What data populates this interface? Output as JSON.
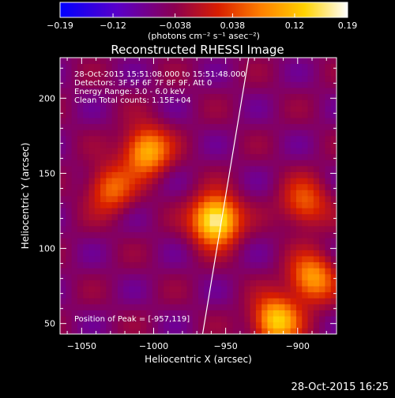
{
  "chart_data": {
    "type": "heatmap",
    "title": "Reconstructed RHESSI Image",
    "xlabel": "Heliocentric X (arcsec)",
    "ylabel": "Heliocentric Y (arcsec)",
    "xlim": [
      -1065,
      -873
    ],
    "ylim": [
      43,
      227
    ],
    "xticks": [
      -1050,
      -1000,
      -950,
      -900
    ],
    "yticks": [
      50,
      100,
      150,
      200
    ],
    "colorbar": {
      "range": [
        -0.19,
        0.19
      ],
      "ticks": [
        "-0.19",
        "-0.12",
        "-0.038",
        "0.038",
        "0.12",
        "0.19"
      ],
      "tick_values": [
        -0.19,
        -0.12,
        -0.038,
        0.038,
        0.12,
        0.19
      ],
      "unit_label": "(photons cm⁻² s⁻¹ asec⁻²)",
      "colors": [
        "#0000ff",
        "#5a00c8",
        "#8c0050",
        "#d81e00",
        "#ff8000",
        "#ffd200",
        "#ffffff"
      ]
    },
    "sources": [
      {
        "x": -957,
        "y": 119,
        "peak": 0.19
      },
      {
        "x": -1005,
        "y": 165,
        "peak": 0.11
      },
      {
        "x": -1030,
        "y": 140,
        "peak": 0.05
      },
      {
        "x": -915,
        "y": 52,
        "peak": 0.13
      },
      {
        "x": -890,
        "y": 80,
        "peak": 0.09
      },
      {
        "x": -895,
        "y": 130,
        "peak": 0.04
      }
    ],
    "limb_line": [
      [
        -966,
        43
      ],
      [
        -934,
        227
      ]
    ],
    "annotations": {
      "time": "28-Oct-2015 15:51:08.000 to 15:51:48.000",
      "detectors": "Detectors: 3F 5F 6F 7F 8F 9F, Att 0",
      "energy": "Energy Range: 3.0 - 6.0 keV",
      "clean": "Clean    Total counts: 1.15E+04",
      "peak_position": "Position of Peak = [-957,119]"
    }
  },
  "timestamp": "28-Oct-2015 16:25"
}
